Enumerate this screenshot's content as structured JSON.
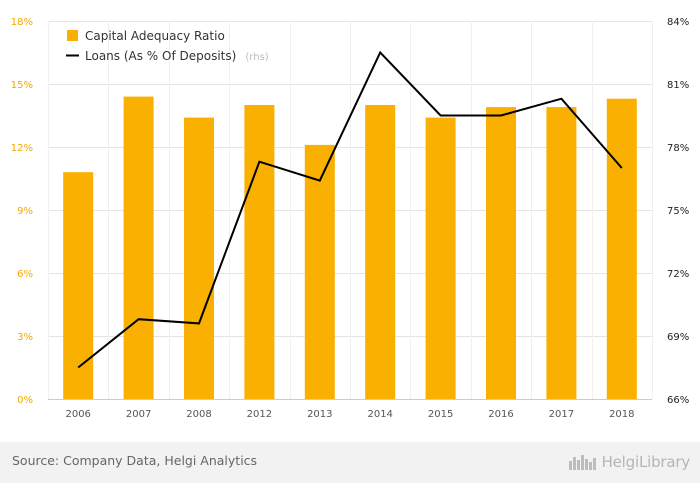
{
  "chart_data": {
    "type": "bar",
    "categories": [
      "2006",
      "2007",
      "2008",
      "2012",
      "2013",
      "2014",
      "2015",
      "2016",
      "2017",
      "2018"
    ],
    "series": [
      {
        "name": "Capital Adequacy Ratio",
        "type": "bar",
        "axis": "left",
        "color": "#f9b000",
        "values": [
          10.8,
          14.4,
          13.4,
          14.0,
          12.1,
          14.0,
          13.4,
          13.9,
          13.9,
          14.3
        ]
      },
      {
        "name": "Loans (As % Of Deposits)",
        "name_suffix": "(rhs)",
        "type": "line",
        "axis": "right",
        "color": "#000000",
        "values": [
          67.5,
          69.8,
          69.6,
          77.3,
          76.4,
          82.5,
          79.5,
          79.5,
          80.3,
          77.0
        ]
      }
    ],
    "left_axis": {
      "min": 0,
      "max": 18,
      "ticks": [
        0,
        3,
        6,
        9,
        12,
        15,
        18
      ],
      "tick_labels": [
        "0%",
        "3%",
        "6%",
        "9%",
        "12%",
        "15%",
        "18%"
      ],
      "color": "#f4a800"
    },
    "right_axis": {
      "min": 66,
      "max": 84,
      "ticks": [
        66,
        69,
        72,
        75,
        78,
        81,
        84
      ],
      "tick_labels": [
        "66%",
        "69%",
        "72%",
        "75%",
        "78%",
        "81%",
        "84%"
      ],
      "color": "#222222"
    },
    "grid": true,
    "legend_position": "top-left"
  },
  "footer": {
    "source": "Source: Company Data, Helgi Analytics",
    "brand": "HelgiLibrary"
  }
}
